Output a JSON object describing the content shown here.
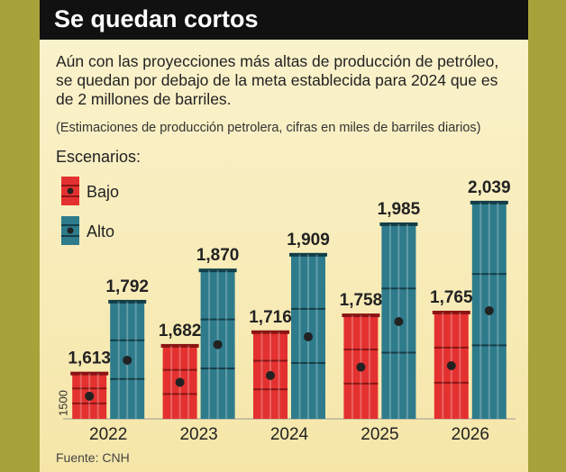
{
  "chart_data": {
    "type": "bar",
    "title": "Se quedan cortos",
    "subtitle": "Aún con las proyecciones más altas de producción de petróleo, se quedan por debajo de la meta establecida para 2024 que es de 2 millones de barriles.",
    "note": "(Estimaciones de producción petrolera, cifras en miles de barriles diarios)",
    "legend_title": "Escenarios:",
    "source": "Fuente: CNH",
    "categories": [
      "2022",
      "2023",
      "2024",
      "2025",
      "2026"
    ],
    "series": [
      {
        "name": "Bajo",
        "color": "#e3312f",
        "values": [
          1613,
          1682,
          1716,
          1758,
          1765
        ],
        "value_labels": [
          "1,613",
          "1,682",
          "1,716",
          "1,758",
          "1,765"
        ]
      },
      {
        "name": "Alto",
        "color": "#2e7b8c",
        "values": [
          1792,
          1870,
          1909,
          1985,
          2039
        ],
        "value_labels": [
          "1,792",
          "1,870",
          "1,909",
          "1,985",
          "2,039"
        ]
      }
    ],
    "ylim": [
      1500,
      2050
    ],
    "yticks": [
      1500
    ]
  }
}
